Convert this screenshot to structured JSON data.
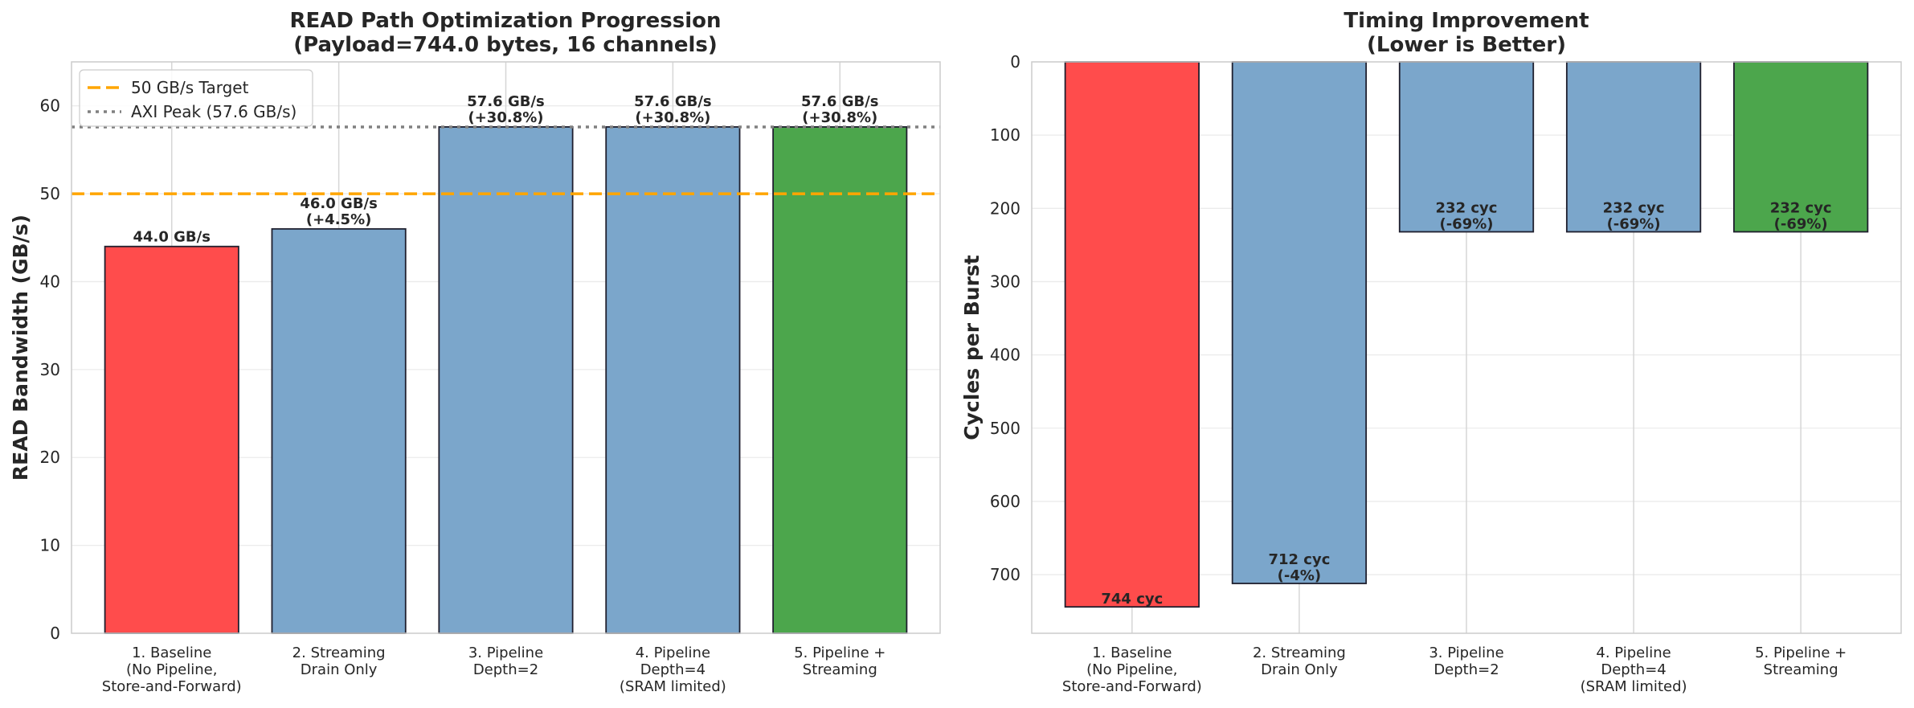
{
  "chart_data": [
    {
      "type": "bar",
      "title_lines": [
        "READ Path Optimization Progression",
        "(Payload=744.0 bytes, 16 channels)"
      ],
      "ylabel": "READ Bandwidth (GB/s)",
      "xlabel": "",
      "ylim": [
        0,
        65
      ],
      "yticks": [
        0,
        10,
        20,
        30,
        40,
        50,
        60
      ],
      "grid": true,
      "inverted_y": false,
      "categories": [
        [
          "1. Baseline",
          "(No Pipeline,",
          "Store-and-Forward)"
        ],
        [
          "2. Streaming",
          "Drain Only"
        ],
        [
          "3. Pipeline",
          "Depth=2"
        ],
        [
          "4. Pipeline",
          "Depth=4",
          "(SRAM limited)"
        ],
        [
          "5. Pipeline +",
          "Streaming"
        ]
      ],
      "values": [
        44.0,
        46.0,
        57.6,
        57.6,
        57.6
      ],
      "bar_colors": [
        "#ff4c4c",
        "#7ba6cb",
        "#7ba6cb",
        "#7ba6cb",
        "#4ca64c"
      ],
      "data_labels": [
        [
          "44.0 GB/s"
        ],
        [
          "46.0 GB/s",
          "(+4.5%)"
        ],
        [
          "57.6 GB/s",
          "(+30.8%)"
        ],
        [
          "57.6 GB/s",
          "(+30.8%)"
        ],
        [
          "57.6 GB/s",
          "(+30.8%)"
        ]
      ],
      "reference_lines": [
        {
          "label": "50 GB/s Target",
          "value": 50,
          "style": "dashed",
          "color": "#ffa500"
        },
        {
          "label": "AXI Peak (57.6 GB/s)",
          "value": 57.6,
          "style": "dotted",
          "color": "#808080"
        }
      ],
      "legend_position": "top-left"
    },
    {
      "type": "bar",
      "title_lines": [
        "Timing Improvement",
        "(Lower is Better)"
      ],
      "ylabel": "Cycles per Burst",
      "xlabel": "",
      "ylim": [
        0,
        780
      ],
      "yticks": [
        0,
        100,
        200,
        300,
        400,
        500,
        600,
        700
      ],
      "grid": true,
      "inverted_y": true,
      "categories": [
        [
          "1. Baseline",
          "(No Pipeline,",
          "Store-and-Forward)"
        ],
        [
          "2. Streaming",
          "Drain Only"
        ],
        [
          "3. Pipeline",
          "Depth=2"
        ],
        [
          "4. Pipeline",
          "Depth=4",
          "(SRAM limited)"
        ],
        [
          "5. Pipeline +",
          "Streaming"
        ]
      ],
      "values": [
        744,
        712,
        232,
        232,
        232
      ],
      "bar_colors": [
        "#ff4c4c",
        "#7ba6cb",
        "#7ba6cb",
        "#7ba6cb",
        "#4ca64c"
      ],
      "data_labels": [
        [
          "744 cyc"
        ],
        [
          "712 cyc",
          "(-4%)"
        ],
        [
          "232 cyc",
          "(-69%)"
        ],
        [
          "232 cyc",
          "(-69%)"
        ],
        [
          "232 cyc",
          "(-69%)"
        ]
      ]
    }
  ]
}
